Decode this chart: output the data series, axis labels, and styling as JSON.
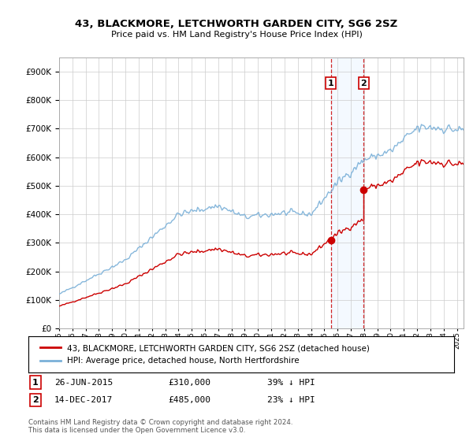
{
  "title": "43, BLACKMORE, LETCHWORTH GARDEN CITY, SG6 2SZ",
  "subtitle": "Price paid vs. HM Land Registry's House Price Index (HPI)",
  "legend_line1": "43, BLACKMORE, LETCHWORTH GARDEN CITY, SG6 2SZ (detached house)",
  "legend_line2": "HPI: Average price, detached house, North Hertfordshire",
  "footnote": "Contains HM Land Registry data © Crown copyright and database right 2024.\nThis data is licensed under the Open Government Licence v3.0.",
  "sale1_date": "26-JUN-2015",
  "sale1_price": 310000,
  "sale1_label": "39% ↓ HPI",
  "sale2_date": "14-DEC-2017",
  "sale2_price": 485000,
  "sale2_label": "23% ↓ HPI",
  "sale1_x": 2015.49,
  "sale2_x": 2017.96,
  "hpi_color": "#7ab0d8",
  "sold_color": "#cc0000",
  "background_color": "#ffffff",
  "grid_color": "#cccccc",
  "shade_color": "#ddeeff",
  "ylim": [
    0,
    950000
  ],
  "xlim_left": 1995.0,
  "xlim_right": 2025.5
}
